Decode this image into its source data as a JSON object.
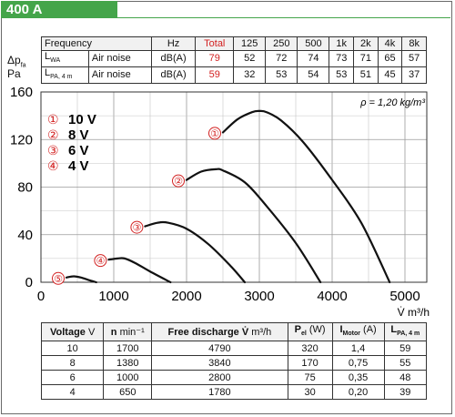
{
  "badge": "400 A",
  "noise_table": {
    "header": [
      "Frequency",
      "Hz",
      "Total",
      "125",
      "250",
      "500",
      "1k",
      "2k",
      "4k",
      "8k"
    ],
    "rows": [
      {
        "label_main": "L",
        "label_sub": "WA",
        "desc": "Air noise",
        "unit": "dB(A)",
        "total": "79",
        "values": [
          "52",
          "72",
          "74",
          "73",
          "71",
          "65",
          "57"
        ]
      },
      {
        "label_main": "L",
        "label_sub": "PA, 4 m",
        "desc": "Air noise",
        "unit": "dB(A)",
        "total": "59",
        "values": [
          "32",
          "53",
          "54",
          "53",
          "51",
          "45",
          "37"
        ]
      }
    ]
  },
  "y_label_main": "Δp",
  "y_label_sub": "fa",
  "y_label_unit": "Pa",
  "x_label": "V̇ m³/h",
  "density_note": "ρ = 1,20 kg/m³",
  "colors": {
    "accent": "#44a54a",
    "marker": "#d32222",
    "curve": "#111111"
  },
  "chart_data": {
    "type": "line",
    "title": "",
    "xlabel": "V̇ m³/h",
    "ylabel": "Δp fa Pa",
    "xlim": [
      0,
      5300
    ],
    "ylim": [
      0,
      160
    ],
    "xticks": [
      0,
      1000,
      2000,
      3000,
      4000,
      5000
    ],
    "yticks": [
      0,
      40,
      80,
      120,
      160
    ],
    "legend": [
      {
        "marker": "①",
        "label": "10 V"
      },
      {
        "marker": "②",
        "label": "8 V"
      },
      {
        "marker": "③",
        "label": "6 V"
      },
      {
        "marker": "④",
        "label": "4 V"
      }
    ],
    "series": [
      {
        "marker": "①",
        "label_at": [
          2500,
          126
        ],
        "points": [
          [
            2500,
            126
          ],
          [
            2700,
            137
          ],
          [
            2900,
            143
          ],
          [
            3000,
            144
          ],
          [
            3100,
            143
          ],
          [
            3300,
            136
          ],
          [
            3600,
            118
          ],
          [
            4000,
            86
          ],
          [
            4400,
            50
          ],
          [
            4790,
            0
          ]
        ]
      },
      {
        "marker": "②",
        "label_at": [
          2000,
          86
        ],
        "points": [
          [
            2000,
            86
          ],
          [
            2200,
            93
          ],
          [
            2400,
            95
          ],
          [
            2500,
            94
          ],
          [
            2800,
            84
          ],
          [
            3100,
            64
          ],
          [
            3500,
            33
          ],
          [
            3840,
            0
          ]
        ]
      },
      {
        "marker": "③",
        "label_at": [
          1430,
          47
        ],
        "points": [
          [
            1430,
            47
          ],
          [
            1600,
            50
          ],
          [
            1750,
            50
          ],
          [
            2000,
            45
          ],
          [
            2300,
            32
          ],
          [
            2600,
            14
          ],
          [
            2800,
            0
          ]
        ]
      },
      {
        "marker": "④",
        "label_at": [
          930,
          19
        ],
        "points": [
          [
            930,
            19
          ],
          [
            1050,
            20
          ],
          [
            1150,
            20
          ],
          [
            1300,
            16
          ],
          [
            1500,
            9
          ],
          [
            1780,
            0
          ]
        ]
      },
      {
        "marker": "⑤",
        "label_at": [
          350,
          4
        ],
        "points": [
          [
            350,
            4
          ],
          [
            450,
            5
          ],
          [
            550,
            4
          ],
          [
            650,
            2
          ],
          [
            760,
            0
          ]
        ]
      }
    ]
  },
  "perf_table": {
    "header": [
      {
        "main": "Voltage",
        "unit": "V"
      },
      {
        "main": "n",
        "unit": "min⁻¹"
      },
      {
        "main": "Free discharge V̇",
        "unit": "m³/h"
      },
      {
        "main": "P",
        "sub": "el",
        "unit": "(W)"
      },
      {
        "main": "I",
        "sub": "Motor",
        "unit": "(A)"
      },
      {
        "main": "L",
        "sub": "PA, 4 m",
        "unit": ""
      }
    ],
    "rows": [
      [
        "10",
        "1700",
        "4790",
        "320",
        "1,4",
        "59"
      ],
      [
        "8",
        "1380",
        "3840",
        "170",
        "0,75",
        "55"
      ],
      [
        "6",
        "1000",
        "2800",
        "75",
        "0,35",
        "48"
      ],
      [
        "4",
        "650",
        "1780",
        "30",
        "0,20",
        "39"
      ]
    ]
  }
}
